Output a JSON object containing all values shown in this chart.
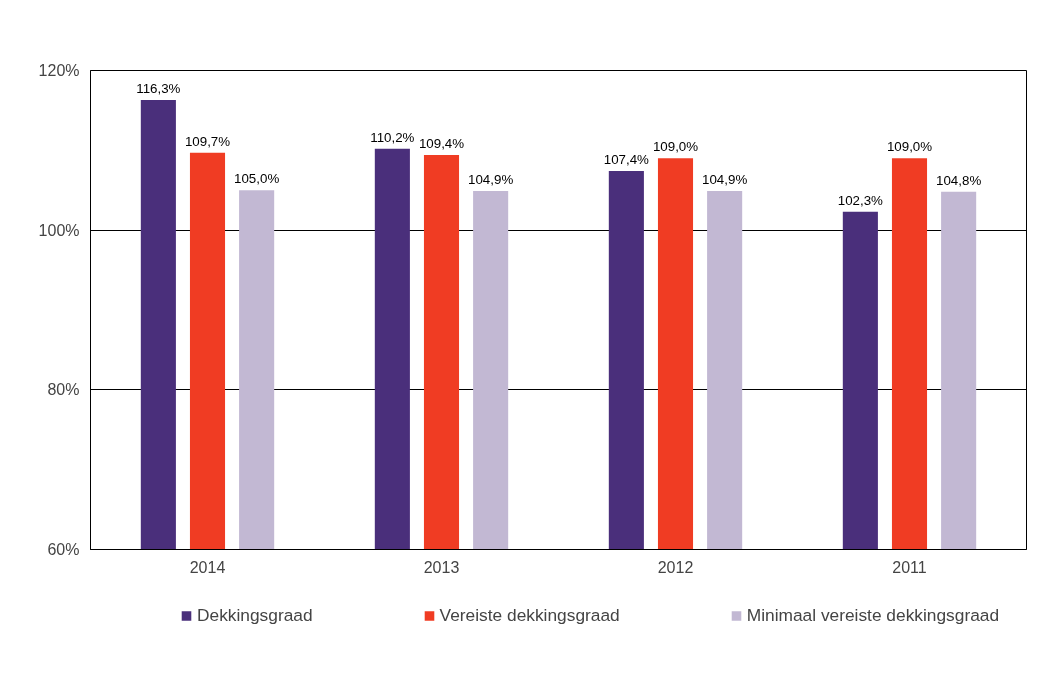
{
  "chart_data": {
    "type": "bar",
    "categories": [
      "2014",
      "2013",
      "2012",
      "2011"
    ],
    "series": [
      {
        "name": "Dekkingsgraad",
        "color": "#4a2f7b",
        "values": [
          116.3,
          110.2,
          107.4,
          102.3
        ],
        "value_labels": [
          "116,3%",
          "110,2%",
          "107,4%",
          "102,3%"
        ]
      },
      {
        "name": "Vereiste dekkingsgraad",
        "color": "#f03c23",
        "values": [
          109.7,
          109.4,
          109.0,
          109.0
        ],
        "value_labels": [
          "109,7%",
          "109,4%",
          "109,0%",
          "109,0%"
        ]
      },
      {
        "name": "Minimaal vereiste dekkingsgraad",
        "color": "#c2b8d3",
        "values": [
          105.0,
          104.9,
          104.9,
          104.8
        ],
        "value_labels": [
          "105,0%",
          "104,9%",
          "104,9%",
          "104,8%"
        ]
      }
    ],
    "ylim": [
      60,
      120
    ],
    "yticks": [
      {
        "value": 60,
        "label": "60%"
      },
      {
        "value": 80,
        "label": "80%"
      },
      {
        "value": 100,
        "label": "100%"
      },
      {
        "value": 120,
        "label": "120%"
      }
    ],
    "grid": "y",
    "legend": "bottom"
  }
}
